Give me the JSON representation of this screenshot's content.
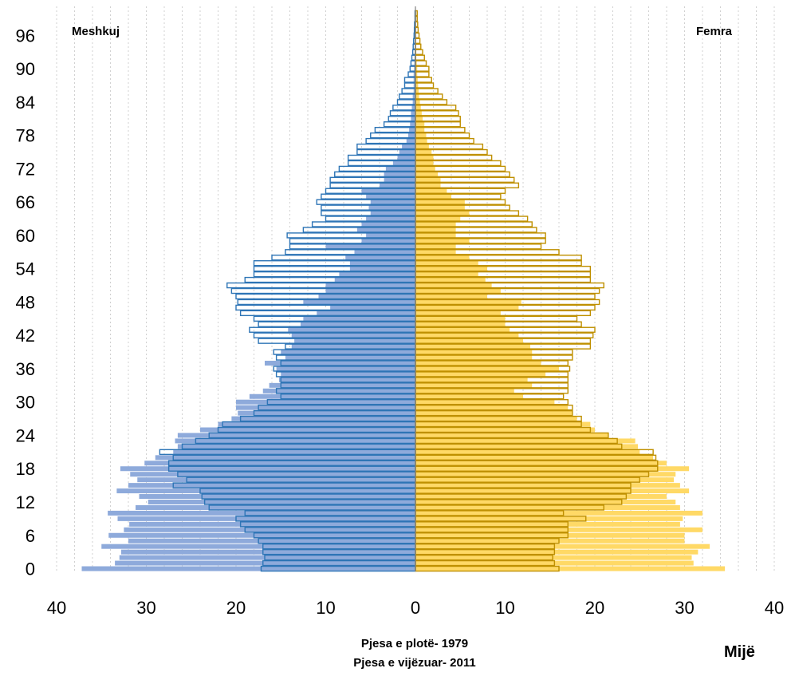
{
  "chart_data": {
    "type": "bar",
    "orientation": "horizontal",
    "layout": "population-pyramid",
    "labels": {
      "left": "Meshkuj",
      "right": "Femra",
      "legend_full": "Pjesa e plotë- 1979",
      "legend_outline": "Pjesa e vijëzuar-  2011",
      "unit": "Mijë"
    },
    "x_ticks": [
      "40",
      "30",
      "20",
      "10",
      "0",
      "10",
      "20",
      "30",
      "40"
    ],
    "y_ticks": [
      "0",
      "6",
      "12",
      "18",
      "24",
      "30",
      "36",
      "42",
      "48",
      "54",
      "60",
      "66",
      "72",
      "78",
      "84",
      "90",
      "96"
    ],
    "xlim": [
      -40,
      40
    ],
    "ages": [
      0,
      1,
      2,
      3,
      4,
      5,
      6,
      7,
      8,
      9,
      10,
      11,
      12,
      13,
      14,
      15,
      16,
      17,
      18,
      19,
      20,
      21,
      22,
      23,
      24,
      25,
      26,
      27,
      28,
      29,
      30,
      31,
      32,
      33,
      34,
      35,
      36,
      37,
      38,
      39,
      40,
      41,
      42,
      43,
      44,
      45,
      46,
      47,
      48,
      49,
      50,
      51,
      52,
      53,
      54,
      55,
      56,
      57,
      58,
      59,
      60,
      61,
      62,
      63,
      64,
      65,
      66,
      67,
      68,
      69,
      70,
      71,
      72,
      73,
      74,
      75,
      76,
      77,
      78,
      79,
      80,
      81,
      82,
      83,
      84,
      85,
      86,
      87,
      88,
      89,
      90,
      91,
      92,
      93,
      94,
      95,
      96,
      97,
      98,
      99,
      100
    ],
    "series": [
      {
        "name": "Meshkuj 1979",
        "style": "filled",
        "values": [
          37.2,
          33.5,
          33.0,
          32.8,
          35.0,
          32.0,
          34.2,
          32.5,
          31.9,
          33.2,
          34.3,
          31.2,
          29.8,
          30.8,
          33.3,
          32.0,
          31.0,
          31.8,
          32.9,
          30.2,
          29.0,
          27.0,
          26.5,
          26.8,
          26.5,
          24.0,
          22.0,
          20.5,
          19.8,
          20.0,
          20.0,
          18.5,
          17.0,
          16.3,
          15.2,
          15.0,
          15.5,
          16.8,
          14.5,
          15.0,
          13.8,
          13.5,
          13.8,
          14.2,
          12.8,
          12.5,
          11.0,
          9.5,
          12.5,
          10.8,
          10.0,
          10.0,
          9.0,
          8.5,
          7.3,
          7.3,
          7.8,
          6.8,
          10.0,
          6.0,
          5.5,
          6.5,
          6.0,
          5.5,
          5.0,
          5.2,
          5.0,
          5.5,
          6.0,
          4.0,
          3.5,
          3.5,
          3.3,
          2.5,
          2.0,
          1.8,
          1.5,
          1.0,
          0.8,
          0.7,
          0.6,
          0.5,
          0.5,
          0.4,
          0.3,
          0.3,
          0.2,
          0.2,
          0.2,
          0.2,
          0.15,
          0.12,
          0.1,
          0.08,
          0.06,
          0.05,
          0.04,
          0.03,
          0.02,
          0.02,
          0.02
        ]
      },
      {
        "name": "Femra 1979",
        "style": "filled",
        "values": [
          34.5,
          31.0,
          30.8,
          31.5,
          32.8,
          30.0,
          30.0,
          32.0,
          29.5,
          29.8,
          32.0,
          29.5,
          29.0,
          28.0,
          30.5,
          29.5,
          28.8,
          29.0,
          30.5,
          28.0,
          26.5,
          25.0,
          24.8,
          24.5,
          21.5,
          20.0,
          19.5,
          18.0,
          17.5,
          17.0,
          15.5,
          12.0,
          11.0,
          13.0,
          12.5,
          14.5,
          16.0,
          14.0,
          13.0,
          13.0,
          12.8,
          12.0,
          11.5,
          10.5,
          10.0,
          10.0,
          9.5,
          11.5,
          11.8,
          8.0,
          9.5,
          8.5,
          7.8,
          7.0,
          8.0,
          7.0,
          6.0,
          4.5,
          4.5,
          6.0,
          4.5,
          4.5,
          4.5,
          5.0,
          6.0,
          5.5,
          5.5,
          4.0,
          3.5,
          2.8,
          2.8,
          2.5,
          2.2,
          2.0,
          2.0,
          1.8,
          1.5,
          1.3,
          1.2,
          1.0,
          1.0,
          0.8,
          0.7,
          0.6,
          0.5,
          0.4,
          0.35,
          0.3,
          0.25,
          0.2,
          0.2,
          0.15,
          0.1,
          0.1,
          0.08,
          0.06,
          0.05,
          0.04,
          0.03,
          0.02,
          0.02
        ]
      },
      {
        "name": "Meshkuj 2011",
        "style": "outline",
        "values": [
          17.2,
          17.0,
          16.8,
          17.0,
          17.0,
          17.5,
          18.0,
          19.0,
          19.5,
          20.0,
          19.0,
          23.0,
          23.5,
          23.8,
          24.0,
          27.0,
          25.5,
          26.5,
          27.5,
          27.5,
          27.0,
          28.5,
          26.0,
          24.5,
          23.0,
          22.0,
          21.5,
          19.5,
          18.0,
          17.5,
          16.5,
          15.0,
          15.5,
          15.0,
          15.0,
          15.5,
          15.8,
          15.0,
          15.5,
          15.8,
          14.5,
          17.5,
          18.0,
          18.5,
          17.5,
          18.0,
          19.5,
          20.0,
          19.8,
          20.0,
          20.5,
          21.0,
          19.0,
          18.0,
          18.0,
          18.0,
          16.0,
          14.5,
          14.0,
          14.0,
          14.3,
          12.5,
          11.5,
          10.0,
          10.5,
          10.5,
          11.0,
          10.5,
          10.0,
          9.5,
          9.5,
          9.0,
          8.5,
          7.5,
          7.5,
          6.5,
          6.5,
          5.5,
          5.0,
          4.5,
          3.5,
          3.0,
          2.8,
          2.5,
          2.0,
          1.8,
          1.5,
          1.2,
          1.2,
          0.8,
          0.6,
          0.5,
          0.4,
          0.3,
          0.25,
          0.2,
          0.15,
          0.12,
          0.1,
          0.05,
          0.05
        ]
      },
      {
        "name": "Femra 2011",
        "style": "outline",
        "values": [
          16.0,
          15.5,
          15.3,
          15.5,
          15.5,
          16.0,
          17.0,
          17.0,
          17.0,
          19.0,
          16.5,
          21.0,
          23.0,
          23.5,
          24.0,
          24.0,
          25.0,
          26.0,
          27.0,
          27.0,
          26.8,
          26.5,
          23.0,
          22.5,
          21.5,
          19.5,
          18.5,
          18.5,
          17.5,
          17.5,
          17.0,
          16.5,
          17.0,
          17.0,
          17.0,
          17.0,
          17.2,
          17.0,
          17.5,
          17.5,
          19.5,
          19.5,
          19.8,
          20.0,
          18.5,
          18.0,
          19.5,
          20.0,
          20.5,
          20.0,
          20.5,
          21.0,
          19.5,
          19.5,
          19.5,
          18.5,
          18.5,
          16.0,
          14.0,
          14.5,
          14.5,
          13.5,
          13.0,
          12.5,
          11.5,
          10.5,
          10.0,
          9.5,
          10.0,
          11.5,
          11.0,
          10.5,
          10.0,
          9.5,
          8.5,
          8.0,
          7.5,
          6.5,
          6.0,
          5.5,
          5.0,
          5.0,
          4.8,
          4.5,
          3.5,
          3.0,
          2.5,
          2.0,
          1.8,
          1.5,
          1.5,
          1.2,
          1.0,
          0.8,
          0.6,
          0.5,
          0.4,
          0.3,
          0.25,
          0.2,
          0.2
        ]
      }
    ],
    "colors": {
      "male_fill": "#8eaadb",
      "female_fill": "#ffd966",
      "male_outline": "#2e75b6",
      "female_outline": "#bf9000",
      "grid": "#d0d0d0",
      "axis": "#7f7f7f"
    },
    "grid": true
  }
}
